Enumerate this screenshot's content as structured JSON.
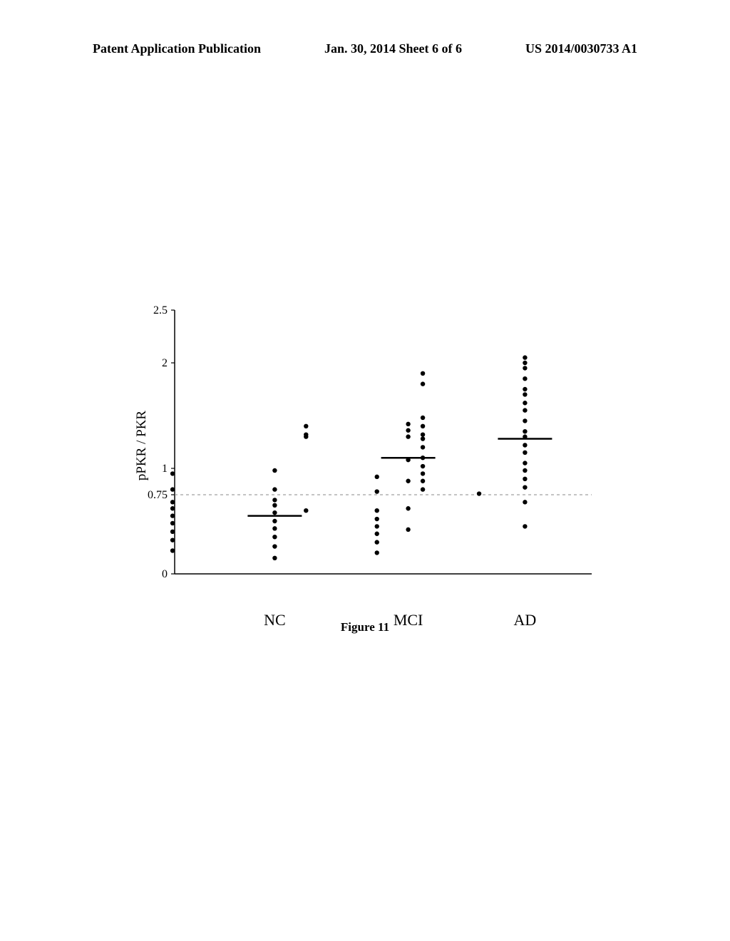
{
  "header": {
    "left": "Patent Application Publication",
    "center": "Jan. 30, 2014  Sheet 6 of 6",
    "right": "US 2014/0030733 A1"
  },
  "chart": {
    "type": "strip-scatter",
    "ylabel": "pPKR / PKR",
    "ylim": [
      0,
      2.5
    ],
    "yticks": [
      0,
      0.75,
      1,
      2,
      2.5
    ],
    "ytick_labels": [
      "0",
      "0.75",
      "1",
      "2",
      "2.5"
    ],
    "hline": 0.75,
    "categories": [
      "NC",
      "MCI",
      "AD"
    ],
    "category_x": [
      0.24,
      0.56,
      0.84
    ],
    "jitter_width": 0.035,
    "marker_size": 3.2,
    "marker_color": "#000000",
    "median_line_color": "#000000",
    "axis_color": "#000000",
    "hline_color": "#888888",
    "background": "#ffffff",
    "series": {
      "NC": {
        "median": 0.55,
        "points": [
          0.98,
          0.95,
          0.92,
          0.8,
          0.8,
          0.78,
          0.77,
          0.76,
          0.76,
          0.7,
          0.68,
          0.65,
          0.62,
          0.6,
          0.58,
          0.55,
          0.52,
          0.5,
          0.48,
          0.45,
          0.43,
          0.4,
          0.38,
          0.35,
          0.32,
          0.3,
          0.26,
          0.22,
          0.2,
          0.15
        ]
      },
      "MCI": {
        "median": 1.1,
        "points": [
          1.42,
          1.4,
          1.36,
          1.32,
          1.3,
          1.3,
          1.08,
          0.88,
          0.62,
          0.6,
          0.42
        ]
      },
      "AD": {
        "median": 1.28,
        "points": [
          2.05,
          2.0,
          1.95,
          1.9,
          1.85,
          1.8,
          1.75,
          1.7,
          1.62,
          1.55,
          1.48,
          1.45,
          1.4,
          1.35,
          1.32,
          1.3,
          1.28,
          1.25,
          1.22,
          1.2,
          1.18,
          1.15,
          1.1,
          1.08,
          1.05,
          1.02,
          1.0,
          0.98,
          0.95,
          0.92,
          0.9,
          0.88,
          0.85,
          0.82,
          0.8,
          0.78,
          0.68,
          0.45
        ]
      }
    }
  },
  "figure_caption": "Figure 11"
}
